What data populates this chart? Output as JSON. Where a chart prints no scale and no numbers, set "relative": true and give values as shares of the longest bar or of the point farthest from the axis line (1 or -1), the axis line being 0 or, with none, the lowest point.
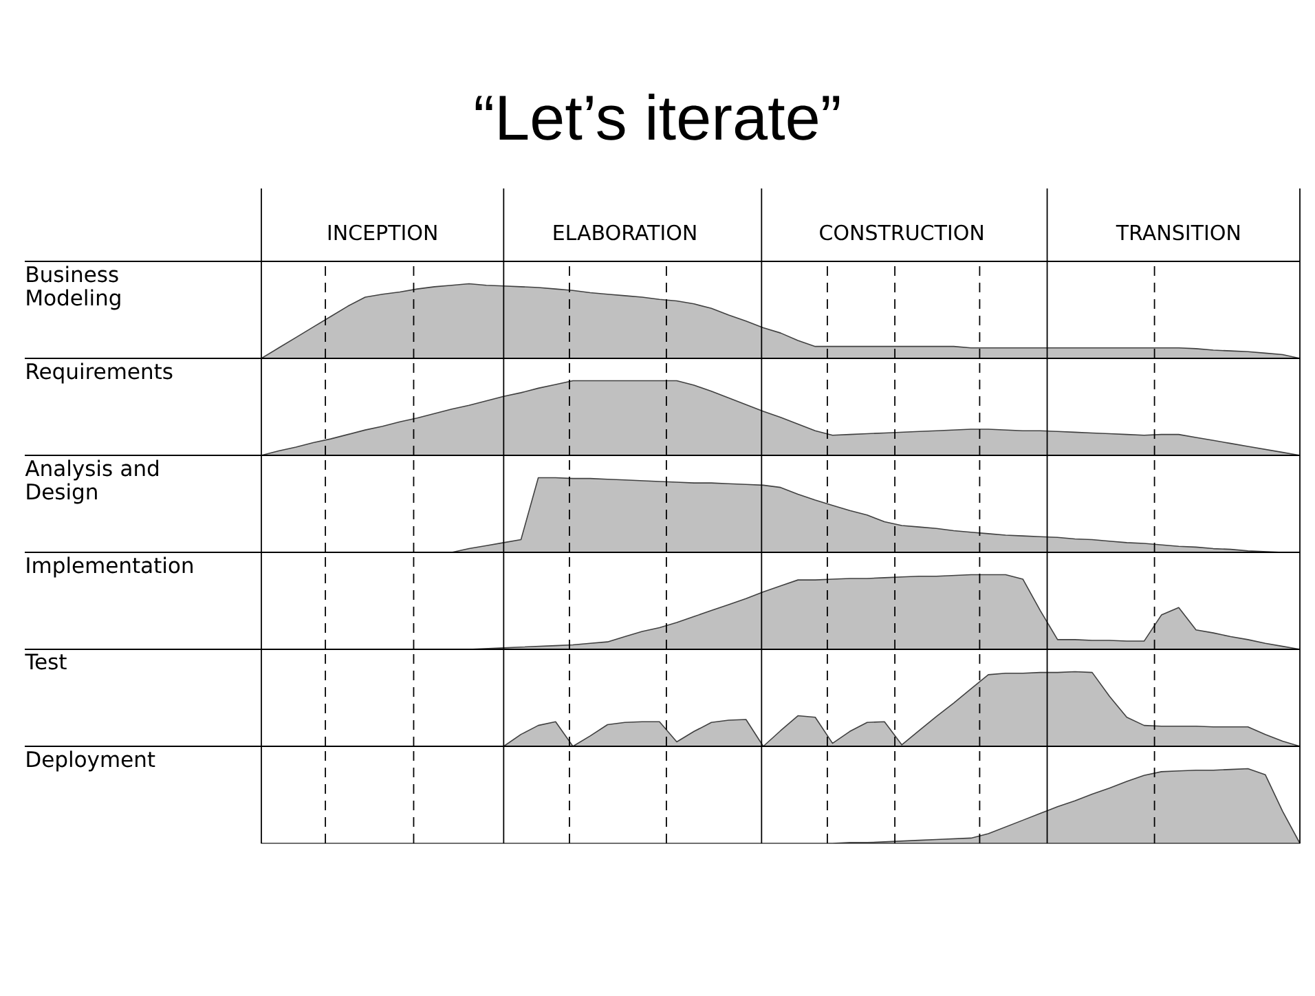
{
  "chart_data": [
    {
      "type": "area",
      "title": "“Let’s iterate”",
      "relative": true,
      "color": "#c0c0c0",
      "ylabel": "Business Modeling",
      "grid": "x",
      "tick_labels": "x",
      "categories": [
        null,
        null,
        null,
        null,
        null,
        null,
        null,
        "INCEPTION",
        null,
        null,
        null,
        null,
        null,
        null,
        null,
        null,
        null,
        null,
        null,
        null,
        null,
        "ELABORATION",
        null,
        null,
        null,
        null,
        null,
        null,
        null,
        null,
        null,
        null,
        null,
        null,
        null,
        null,
        null,
        "CONSTRUCTION",
        null,
        null,
        null,
        null,
        null,
        null,
        null,
        null,
        null,
        null,
        null,
        null,
        null,
        null,
        null,
        "TRANSITION",
        null,
        null,
        null,
        null,
        null,
        null,
        null
      ],
      "values": [
        0,
        0.14,
        0.28,
        0.42,
        0.56,
        0.7,
        0.82,
        0.86,
        0.89,
        0.93,
        0.96,
        0.98,
        1,
        0.98,
        0.97,
        0.96,
        0.95,
        0.93,
        0.91,
        0.88,
        0.86,
        0.84,
        0.82,
        0.79,
        0.77,
        0.73,
        0.67,
        0.58,
        0.5,
        0.41,
        0.34,
        0.24,
        0.16,
        0.16,
        0.16,
        0.16,
        0.16,
        0.16,
        0.16,
        0.16,
        0.16,
        0.14,
        0.14,
        0.14,
        0.14,
        0.14,
        0.14,
        0.14,
        0.14,
        0.14,
        0.14,
        0.14,
        0.14,
        0.14,
        0.13,
        0.11,
        0.1,
        0.09,
        0.07,
        0.05,
        0
      ]
    },
    {
      "type": "area",
      "relative": true,
      "color": "#c0c0c0",
      "ylabel": "Requirements",
      "grid": "x",
      "tick_labels": false,
      "categories": [
        null,
        null,
        null,
        null,
        null,
        null,
        null,
        null,
        null,
        null,
        null,
        null,
        null,
        null,
        null,
        null,
        null,
        null,
        null,
        null,
        null,
        null,
        null,
        null,
        null,
        null,
        null,
        null,
        null,
        null,
        null,
        null,
        null,
        null,
        null,
        null,
        null,
        null,
        null,
        null,
        null,
        null,
        null,
        null,
        null,
        null,
        null,
        null,
        null,
        null,
        null,
        null,
        null,
        null,
        null,
        null,
        null,
        null,
        null,
        null,
        null
      ],
      "values": [
        0,
        0.06,
        0.11,
        0.17,
        0.22,
        0.28,
        0.34,
        0.39,
        0.45,
        0.5,
        0.56,
        0.62,
        0.67,
        0.73,
        0.79,
        0.84,
        0.9,
        0.95,
        1,
        1,
        1,
        1,
        1,
        1,
        1,
        0.94,
        0.86,
        0.77,
        0.68,
        0.59,
        0.51,
        0.42,
        0.33,
        0.27,
        0.28,
        0.29,
        0.3,
        0.31,
        0.32,
        0.33,
        0.34,
        0.35,
        0.35,
        0.34,
        0.33,
        0.33,
        0.32,
        0.31,
        0.3,
        0.29,
        0.28,
        0.27,
        0.28,
        0.28,
        0.24,
        0.2,
        0.16,
        0.12,
        0.08,
        0.04,
        0
      ]
    },
    {
      "type": "area",
      "relative": true,
      "color": "#c0c0c0",
      "ylabel": "Analysis and Design",
      "grid": "x",
      "tick_labels": false,
      "categories": [
        null,
        null,
        null,
        null,
        null,
        null,
        null,
        null,
        null,
        null,
        null,
        null,
        null,
        null,
        null,
        null,
        null,
        null,
        null,
        null,
        null,
        null,
        null,
        null,
        null,
        null,
        null,
        null,
        null,
        null,
        null,
        null,
        null,
        null,
        null,
        null,
        null,
        null,
        null,
        null,
        null,
        null,
        null,
        null,
        null,
        null,
        null,
        null,
        null,
        null,
        null,
        null,
        null,
        null,
        null,
        null,
        null,
        null,
        null,
        null,
        null
      ],
      "values": [
        0,
        0,
        0,
        0,
        0,
        0,
        0,
        0,
        0,
        0,
        0,
        0,
        0.05,
        0.09,
        0.13,
        0.17,
        1,
        1,
        0.99,
        0.99,
        0.98,
        0.97,
        0.96,
        0.95,
        0.94,
        0.93,
        0.93,
        0.92,
        0.91,
        0.9,
        0.87,
        0.78,
        0.7,
        0.63,
        0.56,
        0.5,
        0.41,
        0.36,
        0.34,
        0.32,
        0.29,
        0.27,
        0.25,
        0.23,
        0.22,
        0.21,
        0.2,
        0.18,
        0.17,
        0.15,
        0.13,
        0.12,
        0.1,
        0.08,
        0.07,
        0.05,
        0.04,
        0.02,
        0.01,
        0,
        0
      ]
    },
    {
      "type": "area",
      "relative": true,
      "color": "#c0c0c0",
      "ylabel": "Implementation",
      "grid": "x",
      "tick_labels": false,
      "categories": [
        null,
        null,
        null,
        null,
        null,
        null,
        null,
        null,
        null,
        null,
        null,
        null,
        null,
        null,
        null,
        null,
        null,
        null,
        null,
        null,
        null,
        null,
        null,
        null,
        null,
        null,
        null,
        null,
        null,
        null,
        null,
        null,
        null,
        null,
        null,
        null,
        null,
        null,
        null,
        null,
        null,
        null,
        null,
        null,
        null,
        null,
        null,
        null,
        null,
        null,
        null,
        null,
        null,
        null,
        null,
        null,
        null,
        null,
        null,
        null,
        null
      ],
      "values": [
        0,
        0,
        0,
        0,
        0,
        0,
        0,
        0,
        0,
        0,
        0,
        0,
        0,
        0.01,
        0.02,
        0.03,
        0.04,
        0.05,
        0.06,
        0.08,
        0.1,
        0.17,
        0.24,
        0.29,
        0.36,
        0.44,
        0.52,
        0.6,
        0.68,
        0.77,
        0.85,
        0.93,
        0.93,
        0.94,
        0.95,
        0.95,
        0.96,
        0.97,
        0.98,
        0.98,
        0.99,
        1,
        1,
        1,
        0.94,
        0.52,
        0.13,
        0.13,
        0.12,
        0.12,
        0.11,
        0.11,
        0.46,
        0.56,
        0.26,
        0.22,
        0.17,
        0.13,
        0.08,
        0.04,
        0
      ]
    },
    {
      "type": "area",
      "relative": true,
      "color": "#c0c0c0",
      "ylabel": "Test",
      "grid": "x",
      "tick_labels": false,
      "categories": [
        null,
        null,
        null,
        null,
        null,
        null,
        null,
        null,
        null,
        null,
        null,
        null,
        null,
        null,
        null,
        null,
        null,
        null,
        null,
        null,
        null,
        null,
        null,
        null,
        null,
        null,
        null,
        null,
        null,
        null,
        null,
        null,
        null,
        null,
        null,
        null,
        null,
        null,
        null,
        null,
        null,
        null,
        null,
        null,
        null,
        null,
        null,
        null,
        null,
        null,
        null,
        null,
        null,
        null,
        null,
        null,
        null,
        null,
        null,
        null,
        null
      ],
      "values": [
        0,
        0,
        0,
        0,
        0,
        0,
        0,
        0,
        0,
        0,
        0,
        0,
        0,
        0,
        0,
        0.16,
        0.28,
        0.33,
        0,
        0.14,
        0.29,
        0.32,
        0.33,
        0.33,
        0.06,
        0.2,
        0.32,
        0.35,
        0.36,
        0,
        0.21,
        0.41,
        0.39,
        0.04,
        0.2,
        0.32,
        0.33,
        0.02,
        0.21,
        0.4,
        0.58,
        0.77,
        0.96,
        0.98,
        0.98,
        0.99,
        0.99,
        1,
        0.99,
        0.67,
        0.39,
        0.28,
        0.27,
        0.27,
        0.27,
        0.26,
        0.26,
        0.26,
        0.16,
        0.07,
        0
      ]
    },
    {
      "type": "area",
      "relative": true,
      "color": "#c0c0c0",
      "ylabel": "Deployment",
      "grid": "x",
      "tick_labels": false,
      "categories": [
        null,
        null,
        null,
        null,
        null,
        null,
        null,
        null,
        null,
        null,
        null,
        null,
        null,
        null,
        null,
        null,
        null,
        null,
        null,
        null,
        null,
        null,
        null,
        null,
        null,
        null,
        null,
        null,
        null,
        null,
        null,
        null,
        null,
        null,
        null,
        null,
        null,
        null,
        null,
        null,
        null,
        null,
        null,
        null,
        null,
        null,
        null,
        null,
        null,
        null,
        null,
        null,
        null,
        null,
        null,
        null,
        null,
        null,
        null,
        null,
        null
      ],
      "values": [
        0,
        0,
        0,
        0,
        0,
        0,
        0,
        0,
        0,
        0,
        0,
        0,
        0,
        0,
        0,
        0,
        0,
        0,
        0,
        0,
        0,
        0,
        0,
        0,
        0,
        0,
        0,
        0,
        0,
        0,
        0,
        0,
        0,
        0,
        0.01,
        0.01,
        0.02,
        0.03,
        0.04,
        0.05,
        0.06,
        0.07,
        0.13,
        0.22,
        0.31,
        0.4,
        0.49,
        0.57,
        0.66,
        0.74,
        0.83,
        0.91,
        0.96,
        0.97,
        0.98,
        0.98,
        0.99,
        1,
        0.92,
        0.43,
        0
      ]
    }
  ]
}
